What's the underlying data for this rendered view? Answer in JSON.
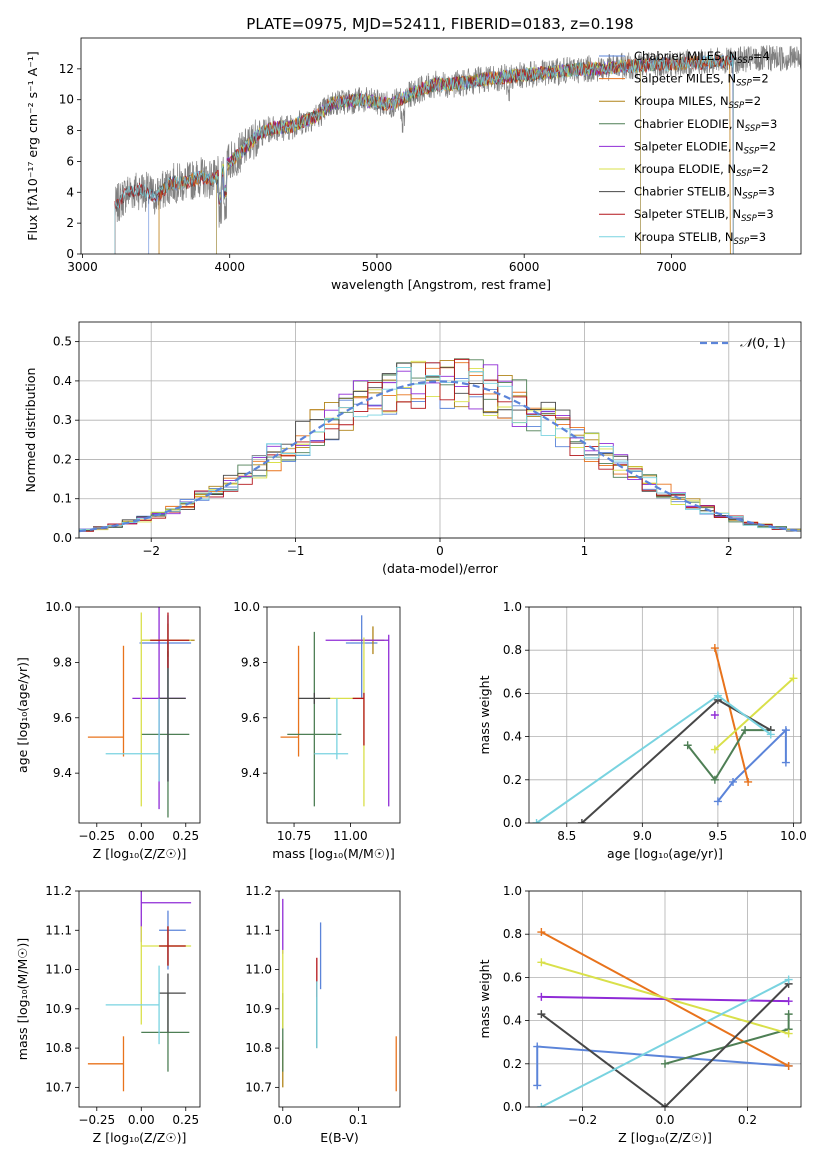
{
  "figure_title": "PLATE=0975, MJD=52411, FIBERID=0183, z=0.198",
  "model_colors": [
    "#5b84d9",
    "#e8731c",
    "#b08418",
    "#4e7f55",
    "#8f2bd6",
    "#d9e04a",
    "#474747",
    "#b3151a",
    "#79d3e0"
  ],
  "chart_data": [
    {
      "id": "spectrum",
      "type": "line",
      "title": "PLATE=0975, MJD=52411, FIBERID=0183, z=0.198",
      "xlabel": "wavelength [Angstrom, rest frame]",
      "ylabel": "Flux [fλ10⁻¹⁷ erg cm⁻² s⁻¹ A⁻¹]",
      "xlim": [
        2990,
        7880
      ],
      "ylim": [
        0,
        14
      ],
      "xticks": [
        3000,
        4000,
        5000,
        6000,
        7000
      ],
      "yticks": [
        0,
        2,
        4,
        6,
        8,
        10,
        12
      ],
      "grid": false,
      "legend_position": "top-right",
      "data_series": {
        "name": "",
        "color": "#808080",
        "x_start": 3220,
        "x_end": 7880,
        "x": [
          3220,
          3300,
          3400,
          3500,
          3600,
          3700,
          3800,
          3900,
          4000,
          4100,
          4200,
          4300,
          4400,
          4500,
          4600,
          4700,
          4800,
          4900,
          5000,
          5100,
          5200,
          5300,
          5400,
          5500,
          5600,
          5700,
          5800,
          5900,
          6000,
          6100,
          6200,
          6300,
          6400,
          6500,
          6600,
          6700,
          6800,
          6900,
          7000,
          7100,
          7200,
          7300,
          7400,
          7500,
          7600,
          7700,
          7880
        ],
        "y": [
          3.0,
          4.0,
          4.2,
          3.7,
          4.6,
          4.6,
          5.0,
          4.8,
          6.0,
          6.8,
          7.8,
          8.2,
          8.2,
          8.6,
          9.0,
          9.8,
          9.9,
          10.0,
          9.8,
          9.7,
          10.2,
          10.7,
          11.0,
          11.0,
          11.1,
          11.3,
          11.4,
          11.5,
          11.6,
          11.7,
          11.8,
          11.9,
          12.0,
          12.0,
          12.1,
          12.2,
          12.2,
          12.3,
          12.3,
          12.4,
          12.4,
          12.5,
          12.5,
          12.6,
          12.6,
          12.7,
          12.7
        ]
      },
      "model_series": [
        {
          "name": "Chabrier MILES, N",
          "sub": "SSP",
          "tail": "=4",
          "x_start": 3450,
          "x_end": 7420
        },
        {
          "name": "Salpeter MILES, N",
          "sub": "SSP",
          "tail": "=2",
          "x_start": 3520,
          "x_end": 7400
        },
        {
          "name": "Kroupa MILES, N",
          "sub": "SSP",
          "tail": "=2",
          "x_start": 3520,
          "x_end": 7400
        },
        {
          "name": "Chabrier ELODIE, N",
          "sub": "SSP",
          "tail": "=3",
          "x_start": 3910,
          "x_end": 6790
        },
        {
          "name": "Salpeter ELODIE, N",
          "sub": "SSP",
          "tail": "=2",
          "x_start": 3910,
          "x_end": 6790
        },
        {
          "name": "Kroupa ELODIE, N",
          "sub": "SSP",
          "tail": "=2",
          "x_start": 3910,
          "x_end": 6790
        },
        {
          "name": "Chabrier STELIB, N",
          "sub": "SSP",
          "tail": "=3",
          "x_start": 3220,
          "x_end": 7420
        },
        {
          "name": "Salpeter STELIB, N",
          "sub": "SSP",
          "tail": "=3",
          "x_start": 3220,
          "x_end": 7420
        },
        {
          "name": "Kroupa STELIB, N",
          "sub": "SSP",
          "tail": "=3",
          "x_start": 3220,
          "x_end": 7420
        }
      ]
    },
    {
      "id": "residuals",
      "type": "histogram",
      "xlabel": "(data-model)/error",
      "ylabel": "Normed distribution",
      "xlim": [
        -2.5,
        2.5
      ],
      "ylim": [
        0,
        0.55
      ],
      "xticks": [
        -2,
        -1,
        0,
        1,
        2
      ],
      "yticks": [
        0.0,
        0.1,
        0.2,
        0.3,
        0.4,
        0.5
      ],
      "grid": true,
      "legend_position": "top-right",
      "reference": {
        "label": "N(0,1)",
        "label_script": "𝒩",
        "label_rest": "(0, 1)",
        "color": "#5b84d9",
        "mean": 0,
        "std": 1
      },
      "bin_width": 0.1,
      "bin_start": -2.5
    },
    {
      "id": "age_vs_Z",
      "type": "errorbar",
      "xlabel": "Z [log₁₀(Z/Z☉)]",
      "ylabel": "age  [log₁₀(age/yr)]",
      "xlim": [
        -0.35,
        0.33
      ],
      "ylim": [
        9.22,
        10.0
      ],
      "xticks": [
        -0.25,
        0.0,
        0.25
      ],
      "yticks": [
        9.4,
        9.6,
        9.8,
        10.0
      ],
      "grid": false,
      "points": [
        {
          "x": 0.15,
          "xerr": [
            0.16,
            0.13
          ],
          "y": 9.87,
          "yerr": [
            0.5,
            0.1
          ]
        },
        {
          "x": -0.1,
          "xerr": [
            0.2,
            0.0
          ],
          "y": 9.53,
          "yerr": [
            0.07,
            0.33
          ]
        },
        {
          "x": 0.15,
          "xerr": [
            0.15,
            0.15
          ],
          "y": 9.88,
          "yerr": [
            0.06,
            0.06
          ]
        },
        {
          "x": 0.15,
          "xerr": [
            0.15,
            0.12
          ],
          "y": 9.54,
          "yerr": [
            0.3,
            0.3
          ]
        },
        {
          "x": 0.1,
          "xerr": [
            0.15,
            0.15
          ],
          "y": 9.67,
          "yerr": [
            0.4,
            0.35
          ]
        },
        {
          "x": 0.0,
          "xerr": [
            0.0,
            0.28
          ],
          "y": 9.88,
          "yerr": [
            0.6,
            0.1
          ]
        },
        {
          "x": 0.15,
          "xerr": [
            0.05,
            0.1
          ],
          "y": 9.67,
          "yerr": [
            0.3,
            0.2
          ]
        },
        {
          "x": 0.15,
          "xerr": [
            0.1,
            0.12
          ],
          "y": 9.88,
          "yerr": [
            0.1,
            0.1
          ]
        },
        {
          "x": 0.1,
          "xerr": [
            0.3,
            0.0
          ],
          "y": 9.47,
          "yerr": [
            0.1,
            0.2
          ]
        }
      ]
    },
    {
      "id": "age_vs_mass",
      "type": "errorbar",
      "xlabel": "mass [log₁₀(M/M☉)]",
      "ylabel": "",
      "xlim": [
        10.63,
        11.22
      ],
      "ylim": [
        9.22,
        10.0
      ],
      "xticks": [
        10.75,
        11.0
      ],
      "yticks": [
        9.4,
        9.6,
        9.8,
        10.0
      ],
      "grid": false,
      "points": [
        {
          "x": 11.05,
          "xerr": [
            0.07,
            0.07
          ],
          "y": 9.87,
          "yerr": [
            0.2,
            0.1
          ]
        },
        {
          "x": 10.77,
          "xerr": [
            0.08,
            0.0
          ],
          "y": 9.53,
          "yerr": [
            0.07,
            0.33
          ]
        },
        {
          "x": 11.1,
          "xerr": [
            0.1,
            0.05
          ],
          "y": 9.88,
          "yerr": [
            0.05,
            0.05
          ]
        },
        {
          "x": 10.84,
          "xerr": [
            0.12,
            0.12
          ],
          "y": 9.54,
          "yerr": [
            0.26,
            0.37
          ]
        },
        {
          "x": 11.17,
          "xerr": [
            0.28,
            0.0
          ],
          "y": 9.88,
          "yerr": [
            0.6,
            0.02
          ]
        },
        {
          "x": 11.06,
          "xerr": [
            0.16,
            0.0
          ],
          "y": 9.67,
          "yerr": [
            0.39,
            0.22
          ]
        },
        {
          "x": 10.84,
          "xerr": [
            0.07,
            0.07
          ],
          "y": 9.67,
          "yerr": [
            0.02,
            0.02
          ]
        },
        {
          "x": 11.06,
          "xerr": [
            0.05,
            0.0
          ],
          "y": 9.67,
          "yerr": [
            0.17,
            0.02
          ]
        },
        {
          "x": 10.94,
          "xerr": [
            0.1,
            0.05
          ],
          "y": 9.47,
          "yerr": [
            0.02,
            0.2
          ]
        }
      ]
    },
    {
      "id": "weight_vs_age",
      "type": "line",
      "xlabel": "age  [log₁₀(age/yr)]",
      "ylabel": "mass weight",
      "xlim": [
        8.25,
        10.05
      ],
      "ylim": [
        0.0,
        1.0
      ],
      "xticks": [
        8.5,
        9.0,
        9.5,
        10.0
      ],
      "yticks": [
        0.0,
        0.2,
        0.4,
        0.6,
        0.8,
        1.0
      ],
      "grid": true,
      "series": [
        {
          "x": [
            9.5,
            9.6,
            9.95,
            9.95
          ],
          "y": [
            0.1,
            0.19,
            0.43,
            0.28
          ]
        },
        {
          "x": [
            9.48,
            9.7
          ],
          "y": [
            0.81,
            0.19
          ]
        },
        {
          "x": [],
          "y": []
        },
        {
          "x": [
            9.3,
            9.48,
            9.68,
            9.85
          ],
          "y": [
            0.36,
            0.2,
            0.43,
            0.43
          ]
        },
        {
          "x": [
            9.48
          ],
          "y": [
            0.5
          ]
        },
        {
          "x": [
            9.48,
            10.0
          ],
          "y": [
            0.34,
            0.67
          ]
        },
        {
          "x": [
            8.6,
            9.5,
            9.85
          ],
          "y": [
            0.0,
            0.57,
            0.43
          ]
        },
        {
          "x": [],
          "y": []
        },
        {
          "x": [
            8.3,
            9.5,
            9.85
          ],
          "y": [
            0.0,
            0.59,
            0.41
          ]
        }
      ]
    },
    {
      "id": "mass_vs_Z",
      "type": "errorbar",
      "xlabel": "Z [log₁₀(Z/Z☉)]",
      "ylabel": "mass [log₁₀(M/M☉)]",
      "xlim": [
        -0.35,
        0.33
      ],
      "ylim": [
        10.65,
        11.2
      ],
      "xticks": [
        -0.25,
        0.0,
        0.25
      ],
      "yticks": [
        10.7,
        10.8,
        10.9,
        11.0,
        11.1,
        11.2
      ],
      "grid": false,
      "points": [
        {
          "x": 0.15,
          "xerr": [
            0.05,
            0.1
          ],
          "y": 11.1,
          "yerr": [
            0.1,
            0.05
          ]
        },
        {
          "x": -0.1,
          "xerr": [
            0.2,
            0.0
          ],
          "y": 10.76,
          "yerr": [
            0.07,
            0.07
          ]
        },
        {
          "x": 0.15,
          "xerr": [
            0.05,
            0.1
          ],
          "y": 11.06,
          "yerr": [
            0.05,
            0.05
          ]
        },
        {
          "x": 0.15,
          "xerr": [
            0.15,
            0.12
          ],
          "y": 10.84,
          "yerr": [
            0.1,
            0.1
          ]
        },
        {
          "x": 0.0,
          "xerr": [
            0.0,
            0.28
          ],
          "y": 11.17,
          "yerr": [
            0.1,
            0.1
          ]
        },
        {
          "x": 0.0,
          "xerr": [
            0.0,
            0.28
          ],
          "y": 11.06,
          "yerr": [
            0.2,
            0.05
          ]
        },
        {
          "x": 0.15,
          "xerr": [
            0.05,
            0.1
          ],
          "y": 10.94,
          "yerr": [
            0.1,
            0.05
          ]
        },
        {
          "x": 0.15,
          "xerr": [
            0.05,
            0.1
          ],
          "y": 11.06,
          "yerr": [
            0.05,
            0.05
          ]
        },
        {
          "x": 0.1,
          "xerr": [
            0.3,
            0.0
          ],
          "y": 10.91,
          "yerr": [
            0.1,
            0.1
          ]
        }
      ]
    },
    {
      "id": "mass_vs_EBV",
      "type": "errorbar",
      "xlabel": "E(B-V)",
      "ylabel": "",
      "xlim": [
        -0.005,
        0.155
      ],
      "ylim": [
        10.65,
        11.2
      ],
      "xticks": [
        0.0,
        0.1
      ],
      "yticks": [
        10.7,
        10.8,
        10.9,
        11.0,
        11.1,
        11.2
      ],
      "grid": false,
      "points": [
        {
          "x": 0.05,
          "xerr": [
            0,
            0
          ],
          "y": 11.05,
          "yerr": [
            0.1,
            0.07
          ]
        },
        {
          "x": 0.15,
          "xerr": [
            0,
            0
          ],
          "y": 10.76,
          "yerr": [
            0.07,
            0.07
          ]
        },
        {
          "x": 0.0,
          "xerr": [
            0,
            0
          ],
          "y": 10.77,
          "yerr": [
            0.07,
            0.05
          ]
        },
        {
          "x": 0.0,
          "xerr": [
            0,
            0
          ],
          "y": 10.84,
          "yerr": [
            0.1,
            0.1
          ]
        },
        {
          "x": 0.0,
          "xerr": [
            0,
            0
          ],
          "y": 11.11,
          "yerr": [
            0.07,
            0.07
          ]
        },
        {
          "x": 0.0,
          "xerr": [
            0,
            0
          ],
          "y": 10.95,
          "yerr": [
            0.1,
            0.1
          ]
        },
        {
          "x": 0.045,
          "xerr": [
            0,
            0
          ],
          "y": 10.9,
          "yerr": [
            0.1,
            0.07
          ]
        },
        {
          "x": 0.045,
          "xerr": [
            0,
            0
          ],
          "y": 10.98,
          "yerr": [
            0.05,
            0.05
          ]
        },
        {
          "x": 0.045,
          "xerr": [
            0,
            0
          ],
          "y": 10.87,
          "yerr": [
            0.07,
            0.1
          ]
        }
      ]
    },
    {
      "id": "weight_vs_Z",
      "type": "line",
      "xlabel": "Z [log₁₀(Z/Z☉)]",
      "ylabel": "mass weight",
      "xlim": [
        -0.33,
        0.33
      ],
      "ylim": [
        0.0,
        1.0
      ],
      "xticks": [
        -0.2,
        0.0,
        0.2
      ],
      "yticks": [
        0.0,
        0.2,
        0.4,
        0.6,
        0.8,
        1.0
      ],
      "grid": true,
      "series": [
        {
          "x": [
            -0.31,
            -0.31,
            0.3
          ],
          "y": [
            0.1,
            0.28,
            0.19
          ]
        },
        {
          "x": [
            -0.3,
            0.3
          ],
          "y": [
            0.81,
            0.19
          ]
        },
        {
          "x": [],
          "y": []
        },
        {
          "x": [
            0.0,
            0.3,
            0.3
          ],
          "y": [
            0.2,
            0.36,
            0.43
          ]
        },
        {
          "x": [
            -0.3,
            0.3
          ],
          "y": [
            0.51,
            0.49
          ]
        },
        {
          "x": [
            -0.3,
            0.3
          ],
          "y": [
            0.67,
            0.34
          ]
        },
        {
          "x": [
            -0.3,
            0.0,
            0.3
          ],
          "y": [
            0.43,
            0.0,
            0.57
          ]
        },
        {
          "x": [],
          "y": []
        },
        {
          "x": [
            -0.3,
            0.3
          ],
          "y": [
            0.0,
            0.59
          ]
        }
      ]
    }
  ]
}
